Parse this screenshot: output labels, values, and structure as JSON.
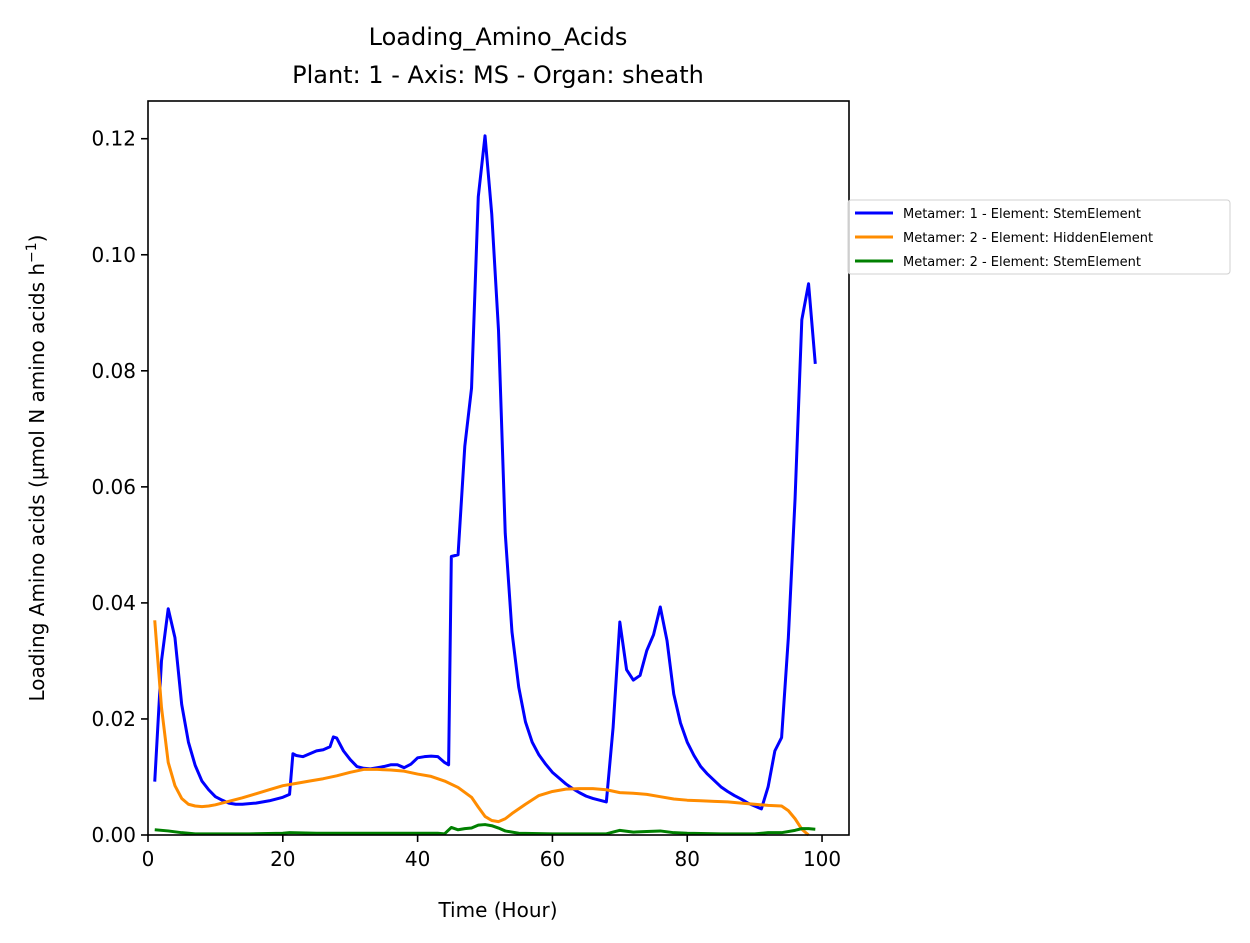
{
  "chart_data": {
    "type": "line",
    "title": "Loading_Amino_Acids",
    "subtitle": "Plant: 1 - Axis: MS - Organ: sheath",
    "xlabel": "Time (Hour)",
    "ylabel": "Loading Amino acids (µmol N amino acids h",
    "ylabel_superscript": "−1",
    "ylabel_suffix": ")",
    "xlim": [
      0,
      104
    ],
    "ylim": [
      0,
      0.1265
    ],
    "xticks": [
      0,
      20,
      40,
      60,
      80,
      100
    ],
    "xtick_labels": [
      "0",
      "20",
      "40",
      "60",
      "80",
      "100"
    ],
    "yticks": [
      0,
      0.02,
      0.04,
      0.06,
      0.08,
      0.1,
      0.12
    ],
    "ytick_labels": [
      "0.00",
      "0.02",
      "0.04",
      "0.06",
      "0.08",
      "0.10",
      "0.12"
    ],
    "grid": false,
    "legend_position": "outside right",
    "series": [
      {
        "name": "Metamer: 1 - Element: StemElement",
        "color": "#0000ff",
        "points": [
          [
            1,
            0.0092
          ],
          [
            2,
            0.03
          ],
          [
            3,
            0.039
          ],
          [
            4,
            0.034
          ],
          [
            5,
            0.0225
          ],
          [
            6,
            0.016
          ],
          [
            7,
            0.012
          ],
          [
            8,
            0.0093
          ],
          [
            9,
            0.0078
          ],
          [
            10,
            0.0066
          ],
          [
            11,
            0.006
          ],
          [
            12,
            0.0055
          ],
          [
            13,
            0.0053
          ],
          [
            14,
            0.0053
          ],
          [
            16,
            0.0055
          ],
          [
            18,
            0.0059
          ],
          [
            20,
            0.0065
          ],
          [
            21,
            0.007
          ],
          [
            21.5,
            0.014
          ],
          [
            22,
            0.0137
          ],
          [
            23,
            0.0135
          ],
          [
            24,
            0.014
          ],
          [
            25,
            0.0145
          ],
          [
            26,
            0.0147
          ],
          [
            27,
            0.0152
          ],
          [
            27.5,
            0.0169
          ],
          [
            28,
            0.0167
          ],
          [
            29,
            0.0145
          ],
          [
            30,
            0.013
          ],
          [
            31,
            0.0118
          ],
          [
            32,
            0.0115
          ],
          [
            33,
            0.0114
          ],
          [
            34,
            0.0116
          ],
          [
            35,
            0.0118
          ],
          [
            36,
            0.0121
          ],
          [
            37,
            0.0121
          ],
          [
            38,
            0.0116
          ],
          [
            39,
            0.0122
          ],
          [
            40,
            0.0133
          ],
          [
            41,
            0.0135
          ],
          [
            42,
            0.0136
          ],
          [
            43,
            0.0135
          ],
          [
            44,
            0.0125
          ],
          [
            44.6,
            0.0121
          ],
          [
            45,
            0.048
          ],
          [
            46,
            0.0483
          ],
          [
            47,
            0.067
          ],
          [
            48,
            0.077
          ],
          [
            49,
            0.11
          ],
          [
            50,
            0.1205
          ],
          [
            51,
            0.107
          ],
          [
            52,
            0.087
          ],
          [
            53,
            0.052
          ],
          [
            54,
            0.035
          ],
          [
            55,
            0.0255
          ],
          [
            56,
            0.0195
          ],
          [
            57,
            0.016
          ],
          [
            58,
            0.0138
          ],
          [
            59,
            0.0122
          ],
          [
            60,
            0.0108
          ],
          [
            61,
            0.0098
          ],
          [
            62,
            0.0088
          ],
          [
            63,
            0.008
          ],
          [
            64,
            0.0073
          ],
          [
            65,
            0.0067
          ],
          [
            66,
            0.0063
          ],
          [
            67,
            0.006
          ],
          [
            68,
            0.0057
          ],
          [
            69,
            0.0185
          ],
          [
            70,
            0.0367
          ],
          [
            71,
            0.0285
          ],
          [
            72,
            0.0267
          ],
          [
            73,
            0.0275
          ],
          [
            74,
            0.0318
          ],
          [
            75,
            0.0345
          ],
          [
            76,
            0.0393
          ],
          [
            77,
            0.0335
          ],
          [
            78,
            0.0243
          ],
          [
            79,
            0.0193
          ],
          [
            80,
            0.016
          ],
          [
            81,
            0.0137
          ],
          [
            82,
            0.0118
          ],
          [
            83,
            0.0105
          ],
          [
            84,
            0.0094
          ],
          [
            85,
            0.0083
          ],
          [
            86,
            0.0075
          ],
          [
            87,
            0.0068
          ],
          [
            88,
            0.0062
          ],
          [
            89,
            0.0055
          ],
          [
            90,
            0.005
          ],
          [
            91,
            0.0045
          ],
          [
            92,
            0.0083
          ],
          [
            93,
            0.0145
          ],
          [
            94,
            0.0168
          ],
          [
            95,
            0.034
          ],
          [
            96,
            0.058
          ],
          [
            97,
            0.0888
          ],
          [
            98,
            0.095
          ],
          [
            99,
            0.0812
          ]
        ]
      },
      {
        "name": "Metamer: 2 - Element: HiddenElement",
        "color": "#ff8c00",
        "points": [
          [
            1,
            0.037
          ],
          [
            2,
            0.022
          ],
          [
            3,
            0.0125
          ],
          [
            4,
            0.0085
          ],
          [
            5,
            0.0063
          ],
          [
            6,
            0.0053
          ],
          [
            7,
            0.005
          ],
          [
            8,
            0.0049
          ],
          [
            9,
            0.005
          ],
          [
            10,
            0.0052
          ],
          [
            12,
            0.0058
          ],
          [
            14,
            0.0064
          ],
          [
            16,
            0.0071
          ],
          [
            18,
            0.0078
          ],
          [
            20,
            0.0085
          ],
          [
            22,
            0.0089
          ],
          [
            24,
            0.0093
          ],
          [
            26,
            0.0097
          ],
          [
            28,
            0.0102
          ],
          [
            30,
            0.0108
          ],
          [
            32,
            0.0113
          ],
          [
            34,
            0.0113
          ],
          [
            36,
            0.0112
          ],
          [
            38,
            0.011
          ],
          [
            40,
            0.0105
          ],
          [
            42,
            0.0101
          ],
          [
            44,
            0.0093
          ],
          [
            46,
            0.0082
          ],
          [
            48,
            0.0065
          ],
          [
            49,
            0.0048
          ],
          [
            50,
            0.0032
          ],
          [
            51,
            0.0025
          ],
          [
            52,
            0.0023
          ],
          [
            53,
            0.0028
          ],
          [
            54,
            0.0037
          ],
          [
            56,
            0.0053
          ],
          [
            58,
            0.0068
          ],
          [
            60,
            0.0075
          ],
          [
            62,
            0.0079
          ],
          [
            64,
            0.008
          ],
          [
            66,
            0.008
          ],
          [
            68,
            0.0078
          ],
          [
            70,
            0.0073
          ],
          [
            72,
            0.0072
          ],
          [
            74,
            0.007
          ],
          [
            76,
            0.0066
          ],
          [
            78,
            0.0062
          ],
          [
            80,
            0.006
          ],
          [
            82,
            0.0059
          ],
          [
            84,
            0.0058
          ],
          [
            86,
            0.0057
          ],
          [
            88,
            0.0055
          ],
          [
            90,
            0.0053
          ],
          [
            92,
            0.0051
          ],
          [
            94,
            0.005
          ],
          [
            95,
            0.0042
          ],
          [
            96,
            0.0028
          ],
          [
            97,
            0.001
          ],
          [
            98,
            0.0
          ]
        ]
      },
      {
        "name": "Metamer: 2 - Element: StemElement",
        "color": "#008000",
        "points": [
          [
            1,
            0.0009
          ],
          [
            3,
            0.0007
          ],
          [
            5,
            0.0004
          ],
          [
            7,
            0.0002
          ],
          [
            10,
            0.0002
          ],
          [
            15,
            0.0002
          ],
          [
            20,
            0.0003
          ],
          [
            21,
            0.0004
          ],
          [
            25,
            0.0003
          ],
          [
            28,
            0.0003
          ],
          [
            30,
            0.0003
          ],
          [
            35,
            0.0003
          ],
          [
            40,
            0.0003
          ],
          [
            43,
            0.0003
          ],
          [
            44,
            0.0002
          ],
          [
            45,
            0.0013
          ],
          [
            46,
            0.0009
          ],
          [
            47,
            0.0011
          ],
          [
            48,
            0.0012
          ],
          [
            49,
            0.0017
          ],
          [
            50,
            0.0018
          ],
          [
            51,
            0.0016
          ],
          [
            52,
            0.0012
          ],
          [
            53,
            0.0007
          ],
          [
            55,
            0.0003
          ],
          [
            60,
            0.0002
          ],
          [
            65,
            0.0002
          ],
          [
            68,
            0.0002
          ],
          [
            70,
            0.0008
          ],
          [
            72,
            0.0005
          ],
          [
            74,
            0.0006
          ],
          [
            76,
            0.0007
          ],
          [
            78,
            0.0004
          ],
          [
            80,
            0.0003
          ],
          [
            85,
            0.0002
          ],
          [
            90,
            0.0002
          ],
          [
            92,
            0.0004
          ],
          [
            94,
            0.0004
          ],
          [
            96,
            0.0008
          ],
          [
            97,
            0.0011
          ],
          [
            98,
            0.0011
          ],
          [
            99,
            0.001
          ]
        ]
      }
    ]
  }
}
